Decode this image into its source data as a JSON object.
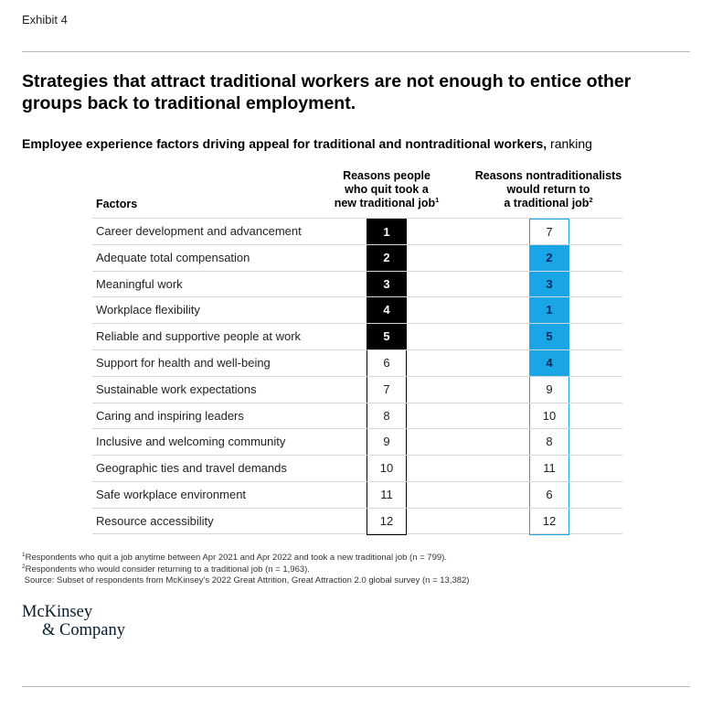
{
  "exhibit_label": "Exhibit 4",
  "headline": "Strategies that attract traditional workers are not enough to entice other groups back to traditional employment.",
  "subtitle_bold": "Employee experience factors driving appeal for traditional and nontraditional workers,",
  "subtitle_normal": " ranking",
  "colors": {
    "traditional_highlight": "#000000",
    "nontraditional_highlight": "#1aa5e6",
    "nontraditional_border": "#1aa5e6"
  },
  "chart_data": {
    "type": "table",
    "columns": [
      {
        "key": "factor",
        "label": "Factors"
      },
      {
        "key": "quit_rank",
        "label": "Reasons people who quit took a new traditional job",
        "label_lines": [
          "Reasons people",
          "who quit took a",
          "new traditional job"
        ],
        "footnote": "1"
      },
      {
        "key": "return_rank",
        "label": "Reasons nontraditionalists would return to a traditional job",
        "label_lines": [
          "Reasons nontraditionalists",
          "would return to",
          "a traditional job"
        ],
        "footnote": "2"
      }
    ],
    "rows": [
      {
        "factor": "Career development and advancement",
        "quit_rank": 1,
        "return_rank": 7
      },
      {
        "factor": "Adequate total compensation",
        "quit_rank": 2,
        "return_rank": 2
      },
      {
        "factor": "Meaningful work",
        "quit_rank": 3,
        "return_rank": 3
      },
      {
        "factor": "Workplace flexibility",
        "quit_rank": 4,
        "return_rank": 1
      },
      {
        "factor": "Reliable and supportive people at work",
        "quit_rank": 5,
        "return_rank": 5
      },
      {
        "factor": "Support for health and well-being",
        "quit_rank": 6,
        "return_rank": 4
      },
      {
        "factor": "Sustainable work expectations",
        "quit_rank": 7,
        "return_rank": 9
      },
      {
        "factor": "Caring and inspiring leaders",
        "quit_rank": 8,
        "return_rank": 10
      },
      {
        "factor": "Inclusive and welcoming community",
        "quit_rank": 9,
        "return_rank": 8
      },
      {
        "factor": "Geographic ties and travel demands",
        "quit_rank": 10,
        "return_rank": 11
      },
      {
        "factor": "Safe workplace environment",
        "quit_rank": 11,
        "return_rank": 6
      },
      {
        "factor": "Resource accessibility",
        "quit_rank": 12,
        "return_rank": 12
      }
    ],
    "highlight_top_n": 5
  },
  "footnotes": [
    {
      "marker": "1",
      "text": "Respondents who quit a job anytime between Apr 2021 and Apr 2022 and took a new traditional job (n = 799)."
    },
    {
      "marker": "2",
      "text": "Respondents who would consider returning to a traditional job (n = 1,963)."
    },
    {
      "marker": "",
      "text": "Source: Subset of respondents from McKinsey's 2022 Great Attrition, Great Attraction 2.0 global survey (n = 13,382)"
    }
  ],
  "logo": {
    "line1": "McKinsey",
    "line2": "& Company"
  }
}
